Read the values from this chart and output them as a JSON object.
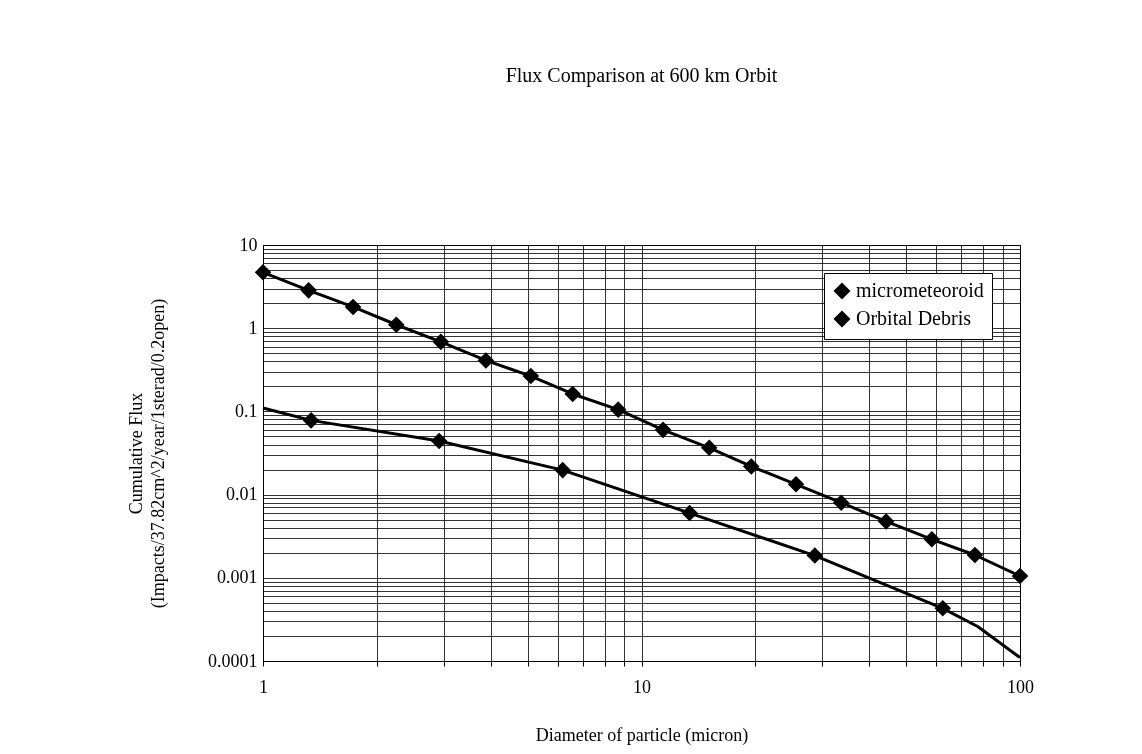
{
  "chart_data": {
    "type": "line",
    "title": "Flux Comparison at 600 km Orbit",
    "xlabel": "Diameter of particle (micron)",
    "ylabel": "Cumulative Flux\n(Impacts/37.82cm^2/year/1sterad/0.2open)",
    "log": "xy",
    "grid": true,
    "legend": "top right",
    "line_style": "solid",
    "xlim": [
      1,
      100
    ],
    "ylim": [
      0.0001,
      10
    ],
    "xticks": [
      1,
      {
        "value": 2,
        "label": null
      },
      {
        "value": 3,
        "label": null
      },
      {
        "value": 4,
        "label": null
      },
      {
        "value": 5,
        "label": null
      },
      {
        "value": 6,
        "label": null
      },
      {
        "value": 7,
        "label": null
      },
      {
        "value": 8,
        "label": null
      },
      {
        "value": 9,
        "label": null
      },
      10,
      {
        "value": 20,
        "label": null
      },
      {
        "value": 30,
        "label": null
      },
      {
        "value": 40,
        "label": null
      },
      {
        "value": 50,
        "label": null
      },
      {
        "value": 60,
        "label": null
      },
      {
        "value": 70,
        "label": null
      },
      {
        "value": 80,
        "label": null
      },
      {
        "value": 90,
        "label": null
      },
      100
    ],
    "yticks": [
      0.0001,
      {
        "value": 0.0002,
        "label": null
      },
      {
        "value": 0.0003,
        "label": null
      },
      {
        "value": 0.0004,
        "label": null
      },
      {
        "value": 0.0005,
        "label": null
      },
      {
        "value": 0.0006,
        "label": null
      },
      {
        "value": 0.0007,
        "label": null
      },
      {
        "value": 0.0008,
        "label": null
      },
      {
        "value": 0.0009,
        "label": null
      },
      0.001,
      {
        "value": 0.002,
        "label": null
      },
      {
        "value": 0.003,
        "label": null
      },
      {
        "value": 0.004,
        "label": null
      },
      {
        "value": 0.005,
        "label": null
      },
      {
        "value": 0.006,
        "label": null
      },
      {
        "value": 0.007,
        "label": null
      },
      {
        "value": 0.008,
        "label": null
      },
      {
        "value": 0.009,
        "label": null
      },
      0.01,
      {
        "value": 0.02,
        "label": null
      },
      {
        "value": 0.03,
        "label": null
      },
      {
        "value": 0.04,
        "label": null
      },
      {
        "value": 0.05,
        "label": null
      },
      {
        "value": 0.06,
        "label": null
      },
      {
        "value": 0.07,
        "label": null
      },
      {
        "value": 0.08,
        "label": null
      },
      {
        "value": 0.09,
        "label": null
      },
      0.1,
      {
        "value": 0.2,
        "label": null
      },
      {
        "value": 0.3,
        "label": null
      },
      {
        "value": 0.4,
        "label": null
      },
      {
        "value": 0.5,
        "label": null
      },
      {
        "value": 0.6,
        "label": null
      },
      {
        "value": 0.7,
        "label": null
      },
      {
        "value": 0.8,
        "label": null
      },
      {
        "value": 0.9,
        "label": null
      },
      1,
      {
        "value": 2,
        "label": null
      },
      {
        "value": 3,
        "label": null
      },
      {
        "value": 4,
        "label": null
      },
      {
        "value": 5,
        "label": null
      },
      {
        "value": 6,
        "label": null
      },
      {
        "value": 7,
        "label": null
      },
      {
        "value": 8,
        "label": null
      },
      {
        "value": 9,
        "label": null
      },
      10
    ],
    "series": [
      {
        "name": "micrometeoroid",
        "marker": "diamond",
        "color": "#000000",
        "x": [
          1.34,
          2.92,
          6.19,
          13.4,
          28.7,
          62.5
        ],
        "values": [
          0.078,
          0.044,
          0.0197,
          0.006,
          0.00185,
          0.00043
        ]
      },
      {
        "name": "Orbital Debris",
        "marker": "diamond",
        "color": "#000000",
        "x": [
          1,
          1.32,
          1.73,
          2.25,
          2.95,
          3.88,
          5.1,
          6.58,
          8.68,
          11.4,
          15.1,
          19.5,
          25.6,
          33.7,
          44.3,
          58.5,
          76,
          100
        ],
        "values": [
          4.7,
          2.85,
          1.8,
          1.1,
          0.685,
          0.41,
          0.266,
          0.162,
          0.105,
          0.06,
          0.0365,
          0.0218,
          0.0133,
          0.008,
          0.00476,
          0.0029,
          0.00188,
          0.00105
        ]
      },
      {
        "marker": "none",
        "color": "#000000",
        "x": [
          1,
          1.34
        ],
        "values": [
          0.11,
          0.078
        ]
      },
      {
        "marker": "none",
        "color": "#000000",
        "x": [
          62.5,
          77.3,
          100
        ],
        "values": [
          0.00043,
          0.00026,
          0.00011
        ]
      }
    ]
  }
}
